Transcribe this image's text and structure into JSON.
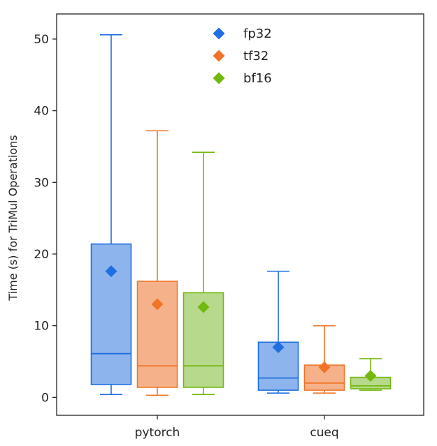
{
  "chart_data": {
    "type": "box",
    "title": "",
    "xlabel": "",
    "ylabel": "Time (s) for TriMul Operations",
    "ylim": [
      -2.5,
      53.5
    ],
    "yticks": [
      0,
      10,
      20,
      30,
      40,
      50
    ],
    "grid": false,
    "legend_position": "top-center",
    "categories": [
      "pytorch",
      "cueq"
    ],
    "series": [
      {
        "name": "fp32",
        "color": "#1f6fe0",
        "fill": "#8db4ec",
        "boxes": [
          {
            "category": "pytorch",
            "whislo": 0.4,
            "q1": 1.8,
            "median": 6.1,
            "q3": 21.4,
            "whishi": 50.6,
            "mean": 17.6
          },
          {
            "category": "cueq",
            "whislo": 0.6,
            "q1": 1.0,
            "median": 2.7,
            "q3": 7.7,
            "whishi": 17.6,
            "mean": 7.0
          }
        ]
      },
      {
        "name": "tf32",
        "color": "#f07428",
        "fill": "#f5b28a",
        "boxes": [
          {
            "category": "pytorch",
            "whislo": 0.3,
            "q1": 1.4,
            "median": 4.4,
            "q3": 16.2,
            "whishi": 37.2,
            "mean": 13.0
          },
          {
            "category": "cueq",
            "whislo": 0.6,
            "q1": 1.0,
            "median": 2.0,
            "q3": 4.5,
            "whishi": 10.0,
            "mean": 4.2
          }
        ]
      },
      {
        "name": "bf16",
        "color": "#72b80e",
        "fill": "#b7d98c",
        "boxes": [
          {
            "category": "pytorch",
            "whislo": 0.4,
            "q1": 1.4,
            "median": 4.4,
            "q3": 14.6,
            "whishi": 34.2,
            "mean": 12.6
          },
          {
            "category": "cueq",
            "whislo": 1.0,
            "q1": 1.2,
            "median": 1.6,
            "q3": 2.8,
            "whishi": 5.4,
            "mean": 3.0
          }
        ]
      }
    ]
  }
}
